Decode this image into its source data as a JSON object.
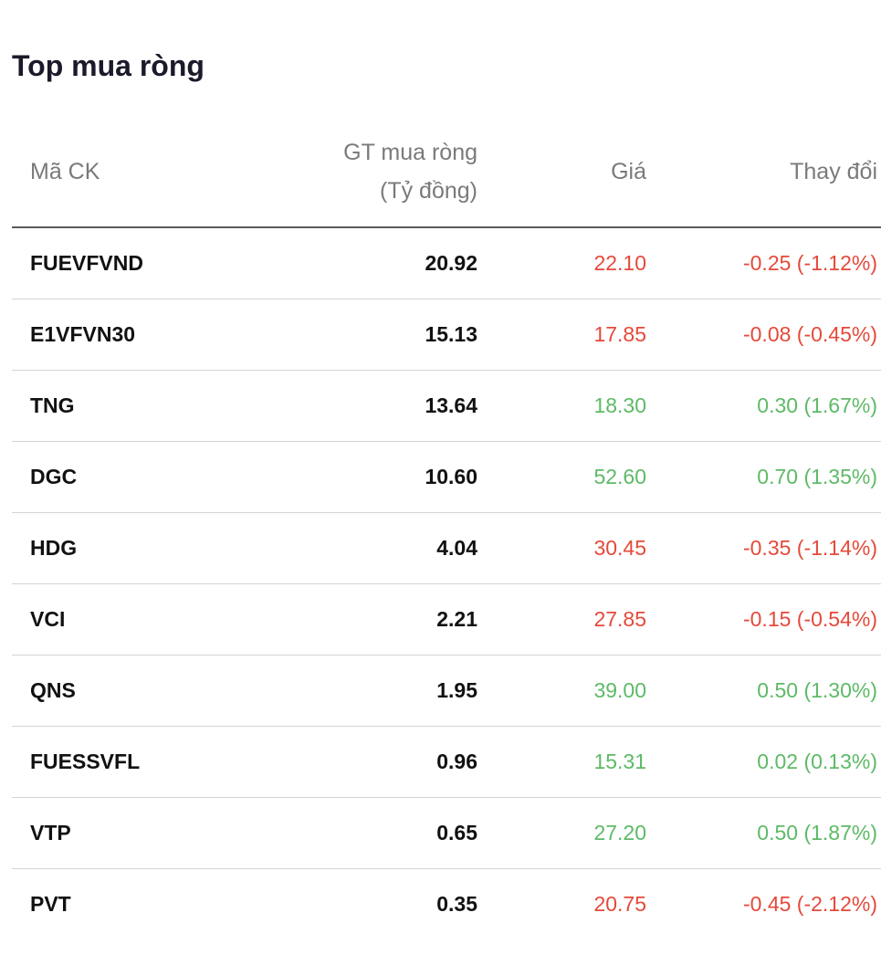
{
  "title": "Top mua ròng",
  "columns": {
    "symbol": "Mã CK",
    "net_value_line1": "GT mua ròng",
    "net_value_line2": "(Tỷ đồng)",
    "price": "Giá",
    "change": "Thay đổi"
  },
  "colors": {
    "up": "#5dba66",
    "down": "#e5493a"
  },
  "rows": [
    {
      "symbol": "FUEVFVND",
      "net_value": "20.92",
      "price": "22.10",
      "change": "-0.25 (-1.12%)",
      "direction": "down"
    },
    {
      "symbol": "E1VFVN30",
      "net_value": "15.13",
      "price": "17.85",
      "change": "-0.08 (-0.45%)",
      "direction": "down"
    },
    {
      "symbol": "TNG",
      "net_value": "13.64",
      "price": "18.30",
      "change": "0.30 (1.67%)",
      "direction": "up"
    },
    {
      "symbol": "DGC",
      "net_value": "10.60",
      "price": "52.60",
      "change": "0.70 (1.35%)",
      "direction": "up"
    },
    {
      "symbol": "HDG",
      "net_value": "4.04",
      "price": "30.45",
      "change": "-0.35 (-1.14%)",
      "direction": "down"
    },
    {
      "symbol": "VCI",
      "net_value": "2.21",
      "price": "27.85",
      "change": "-0.15 (-0.54%)",
      "direction": "down"
    },
    {
      "symbol": "QNS",
      "net_value": "1.95",
      "price": "39.00",
      "change": "0.50 (1.30%)",
      "direction": "up"
    },
    {
      "symbol": "FUESSVFL",
      "net_value": "0.96",
      "price": "15.31",
      "change": "0.02 (0.13%)",
      "direction": "up"
    },
    {
      "symbol": "VTP",
      "net_value": "0.65",
      "price": "27.20",
      "change": "0.50 (1.87%)",
      "direction": "up"
    },
    {
      "symbol": "PVT",
      "net_value": "0.35",
      "price": "20.75",
      "change": "-0.45 (-2.12%)",
      "direction": "down"
    }
  ]
}
